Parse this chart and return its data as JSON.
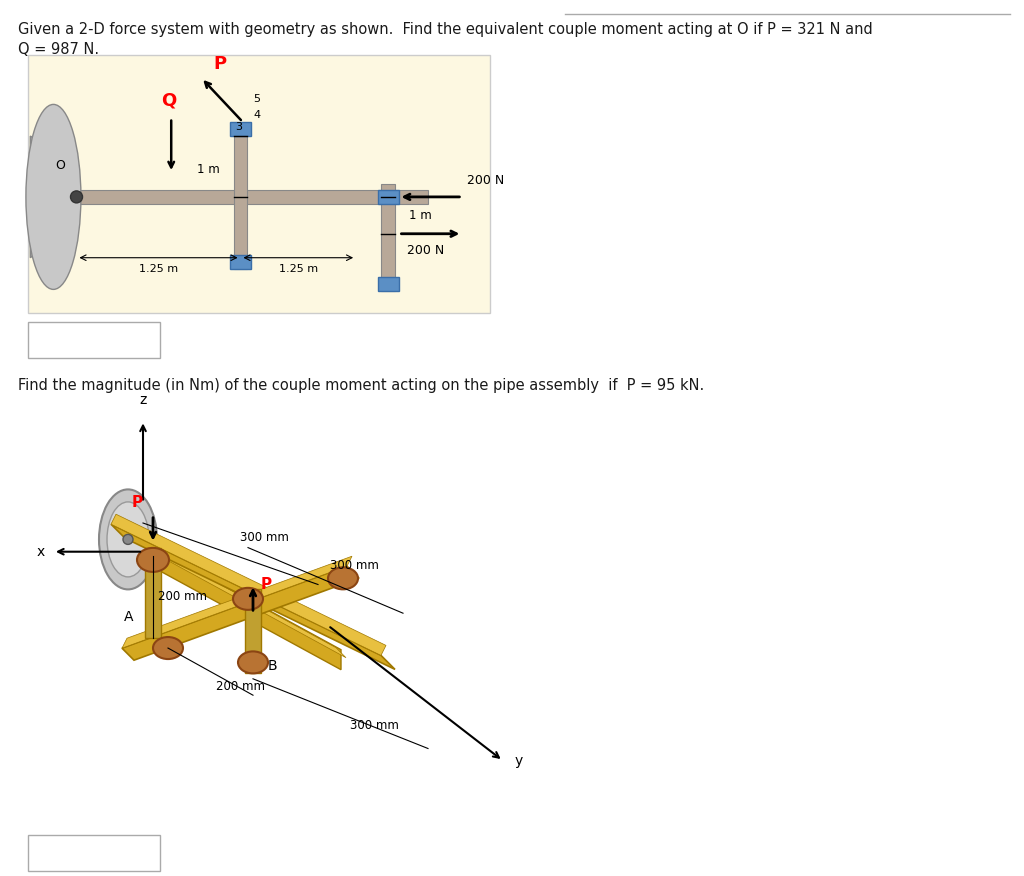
{
  "page_bg": "#ffffff",
  "top_text_line1": "Given a 2-D force system with geometry as shown.  Find the equivalent couple moment acting at O if P = 321 N and",
  "top_text_line2": "Q = 987 N.",
  "diagram1_bg": "#fdf8e1",
  "second_text": "Find the magnitude (in Nm) of the couple moment acting on the pipe assembly  if  P = 95 kN.",
  "pipe_color": "#b8a898",
  "pipe_edge": "#888888",
  "blue_color": "#5b8fc5",
  "blue_edge": "#3a6ea8",
  "gold_color": "#d4a820",
  "gold_dark": "#a07800",
  "gold_light": "#e8c040",
  "copper_color": "#b87333",
  "copper_edge": "#8B4513"
}
